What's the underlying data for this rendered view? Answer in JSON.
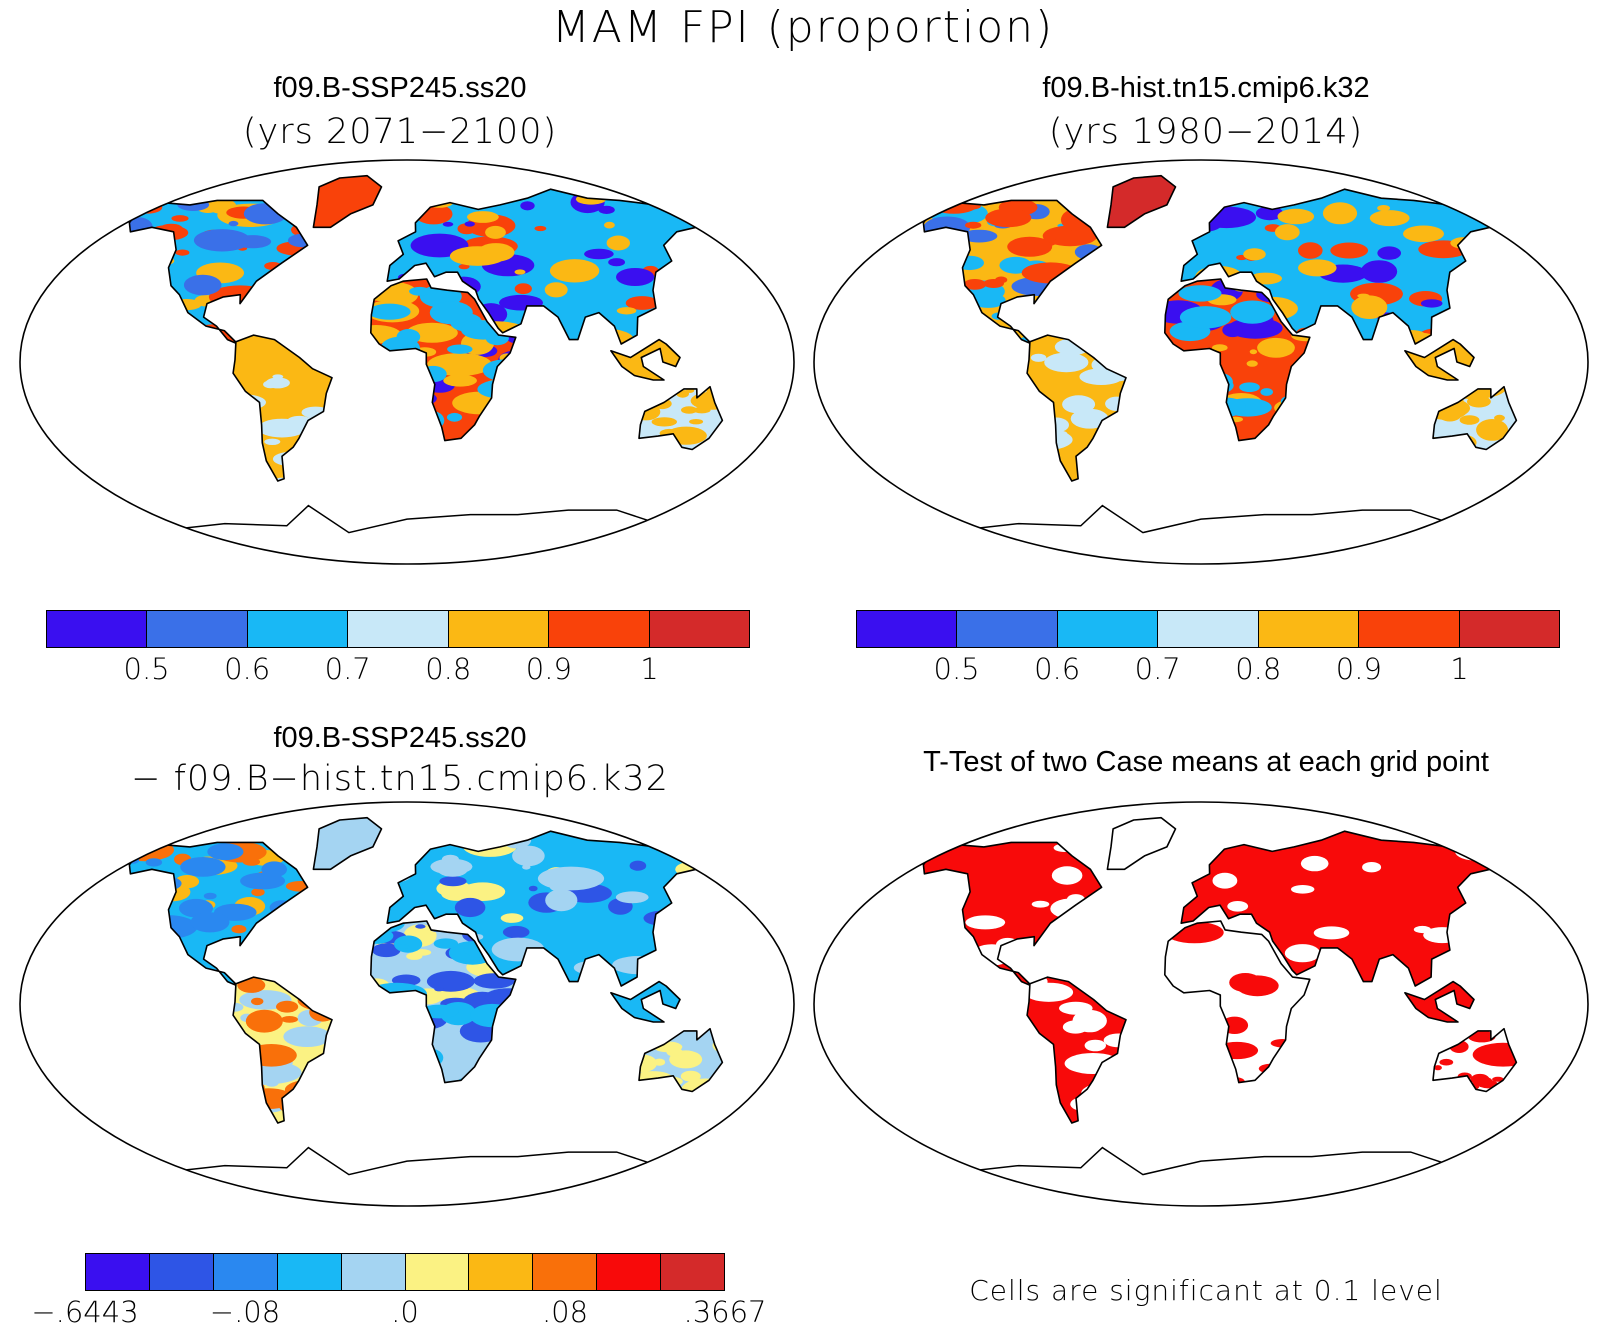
{
  "title": "MAM FPI (proportion)",
  "panels": {
    "top_left": {
      "title": "f09.B-SSP245.ss20",
      "subtitle": "(yrs 2071−2100)",
      "palette": "abs",
      "land": [
        {
          "region": "north-america",
          "fill": "c2",
          "highlights": [
            "c4",
            "c5",
            "c1"
          ]
        },
        {
          "region": "greenland",
          "fill": "c5"
        },
        {
          "region": "south-america",
          "fill": "c4",
          "highlights": [
            "c3"
          ]
        },
        {
          "region": "europe-asia",
          "fill": "c2",
          "highlights": [
            "c5",
            "c0",
            "c4"
          ]
        },
        {
          "region": "africa",
          "fill": "c5",
          "highlights": [
            "c0",
            "c4",
            "c2"
          ]
        },
        {
          "region": "australia",
          "fill": "c3",
          "highlights": [
            "c4"
          ]
        },
        {
          "region": "se-asia",
          "fill": "c4"
        }
      ]
    },
    "top_right": {
      "title": "f09.B-hist.tn15.cmip6.k32",
      "subtitle": "(yrs 1980−2014)",
      "palette": "abs",
      "land": [
        {
          "region": "north-america",
          "fill": "c4",
          "highlights": [
            "c2",
            "c1",
            "c5"
          ]
        },
        {
          "region": "greenland",
          "fill": "c6"
        },
        {
          "region": "south-america",
          "fill": "c4",
          "highlights": [
            "c3"
          ]
        },
        {
          "region": "europe-asia",
          "fill": "c2",
          "highlights": [
            "c5",
            "c0",
            "c4"
          ]
        },
        {
          "region": "africa",
          "fill": "c5",
          "highlights": [
            "c0",
            "c4",
            "c2"
          ]
        },
        {
          "region": "australia",
          "fill": "c3",
          "highlights": [
            "c4"
          ]
        },
        {
          "region": "se-asia",
          "fill": "c4"
        }
      ]
    },
    "bottom_left": {
      "title": "f09.B-SSP245.ss20",
      "subtitle": "− f09.B−hist.tn15.cmip6.k32",
      "palette": "diff",
      "land": [
        {
          "region": "north-america",
          "fill": "c3",
          "highlights": [
            "c6",
            "c7",
            "c2"
          ]
        },
        {
          "region": "greenland",
          "fill": "c4"
        },
        {
          "region": "south-america",
          "fill": "c5",
          "highlights": [
            "c4",
            "c7"
          ]
        },
        {
          "region": "europe-asia",
          "fill": "c3",
          "highlights": [
            "c5",
            "c1",
            "c4"
          ]
        },
        {
          "region": "africa",
          "fill": "c4",
          "highlights": [
            "c5",
            "c1",
            "c3"
          ]
        },
        {
          "region": "australia",
          "fill": "c4",
          "highlights": [
            "c5"
          ]
        },
        {
          "region": "se-asia",
          "fill": "c3"
        }
      ]
    },
    "bottom_right": {
      "title": "T-Test of two Case means at each grid point",
      "note": "Cells are significant at 0.1 level",
      "palette": "sig",
      "land": [
        {
          "region": "north-america",
          "fill": "c1",
          "highlights": [
            "c0"
          ]
        },
        {
          "region": "greenland",
          "fill": "c0"
        },
        {
          "region": "south-america",
          "fill": "c1",
          "highlights": [
            "c0"
          ]
        },
        {
          "region": "europe-asia",
          "fill": "c1",
          "highlights": [
            "c0"
          ]
        },
        {
          "region": "africa",
          "fill": "c0",
          "highlights": [
            "c1"
          ]
        },
        {
          "region": "australia",
          "fill": "c0",
          "highlights": [
            "c1"
          ]
        },
        {
          "region": "se-asia",
          "fill": "c1"
        }
      ]
    }
  },
  "palettes": {
    "abs": [
      "#3a0ff0",
      "#3a70e8",
      "#19b8f5",
      "#c8e8f8",
      "#fbb814",
      "#f9420a",
      "#d42a2a"
    ],
    "diff": [
      "#3a0ff0",
      "#2e55e6",
      "#2a88f0",
      "#19b8f5",
      "#a4d4f2",
      "#fbf283",
      "#fbb814",
      "#f9700a",
      "#f80a0a",
      "#d42a2a"
    ],
    "sig": [
      "#ffffff",
      "#f80a0a"
    ]
  },
  "colorbars": {
    "top_left": {
      "colors": [
        "#3a0ff0",
        "#3a70e8",
        "#19b8f5",
        "#c8e8f8",
        "#fbb814",
        "#f9420a",
        "#d42a2a"
      ],
      "labels": [
        "0.5",
        "0.6",
        "0.7",
        "0.8",
        "0.9",
        "1"
      ]
    },
    "top_right": {
      "colors": [
        "#3a0ff0",
        "#3a70e8",
        "#19b8f5",
        "#c8e8f8",
        "#fbb814",
        "#f9420a",
        "#d42a2a"
      ],
      "labels": [
        "0.5",
        "0.6",
        "0.7",
        "0.8",
        "0.9",
        "1"
      ]
    },
    "bottom_left": {
      "colors": [
        "#3a0ff0",
        "#2e55e6",
        "#2a88f0",
        "#19b8f5",
        "#a4d4f2",
        "#fbf283",
        "#fbb814",
        "#f9700a",
        "#f80a0a",
        "#d42a2a"
      ],
      "labels": [
        "−.6443",
        "−.08",
        ".0",
        ".08",
        ".3667"
      ]
    }
  }
}
